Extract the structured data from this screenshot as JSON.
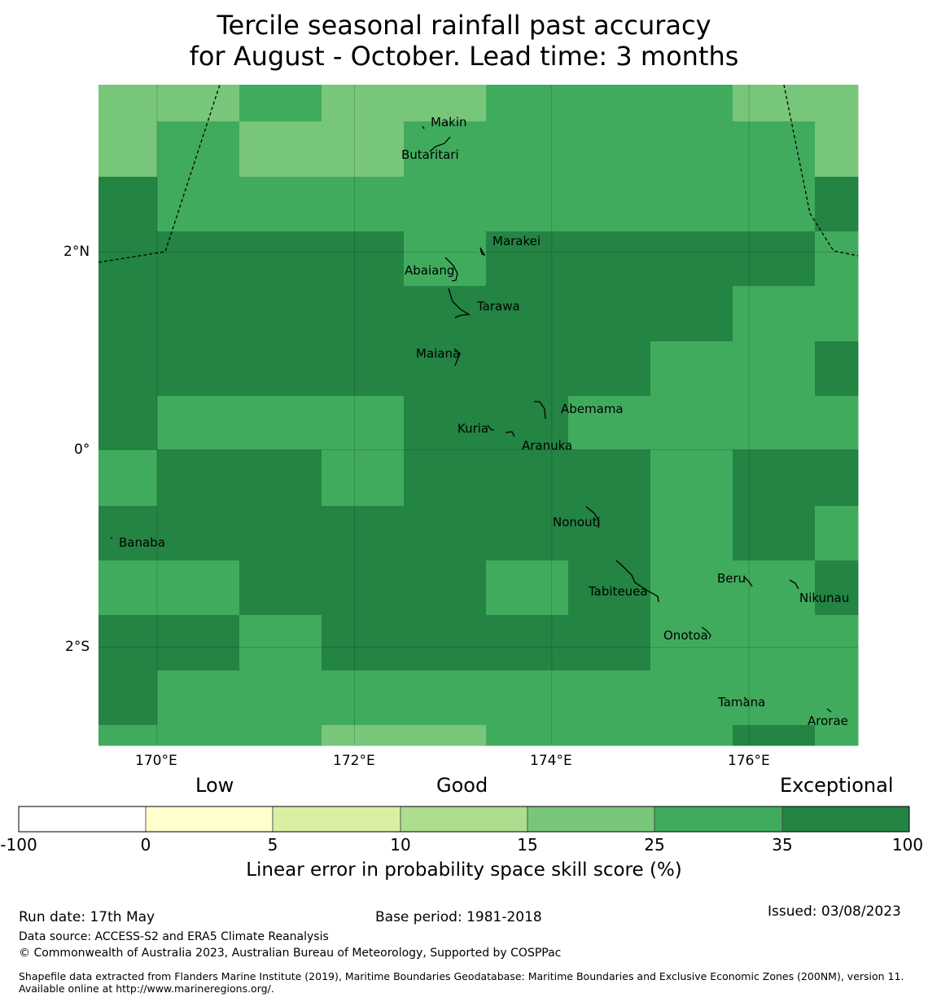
{
  "title_line1": "Tercile seasonal rainfall past accuracy",
  "title_line2": "for August - October. Lead time: 3 months",
  "map": {
    "lon_ticks": [
      "170°E",
      "172°E",
      "174°E",
      "176°E"
    ],
    "lat_ticks": [
      "2°N",
      "0°",
      "2°S"
    ],
    "lon_tick_values": [
      170,
      172,
      174,
      176
    ],
    "lat_tick_values": [
      2,
      0,
      -2
    ],
    "lon_range": [
      169.4,
      177.1
    ],
    "lat_range": [
      -3.0,
      3.7
    ],
    "skill_categories": [
      "-100 to 0",
      "0 to 5",
      "5 to 10",
      "10 to 15",
      "15 to 25",
      "25 to 35",
      "35 to 100"
    ],
    "grid_levels": [
      [
        4,
        4,
        5,
        4,
        4,
        5,
        5,
        5,
        4,
        4
      ],
      [
        4,
        5,
        4,
        4,
        5,
        5,
        5,
        5,
        5,
        4
      ],
      [
        6,
        5,
        5,
        5,
        5,
        5,
        5,
        5,
        5,
        6
      ],
      [
        6,
        6,
        6,
        6,
        5,
        6,
        6,
        6,
        6,
        5
      ],
      [
        6,
        6,
        6,
        6,
        6,
        6,
        6,
        6,
        5,
        5
      ],
      [
        6,
        6,
        6,
        6,
        6,
        6,
        6,
        6,
        5,
        6
      ],
      [
        6,
        6,
        6,
        6,
        6,
        6,
        6,
        5,
        5,
        6
      ],
      [
        6,
        6,
        6,
        6,
        6,
        5,
        5,
        5,
        6,
        6
      ],
      [
        6,
        5,
        5,
        5,
        6,
        6,
        5,
        5,
        5,
        5
      ],
      [
        5,
        6,
        6,
        5,
        6,
        6,
        6,
        5,
        6,
        6
      ],
      [
        6,
        6,
        6,
        6,
        6,
        6,
        6,
        5,
        6,
        5
      ],
      [
        6,
        6,
        6,
        6,
        6,
        6,
        6,
        5,
        6,
        5
      ],
      [
        5,
        5,
        6,
        6,
        6,
        5,
        6,
        5,
        5,
        6
      ],
      [
        6,
        6,
        5,
        6,
        6,
        6,
        6,
        5,
        5,
        5
      ],
      [
        6,
        5,
        5,
        5,
        5,
        5,
        5,
        5,
        5,
        5
      ],
      [
        6,
        5,
        5,
        5,
        5,
        5,
        5,
        5,
        5,
        5
      ],
      [
        5,
        5,
        5,
        4,
        4,
        5,
        5,
        5,
        6,
        5
      ]
    ],
    "places": [
      {
        "name": "Makin",
        "lon": 173.15,
        "lat": 3.3
      },
      {
        "name": "Butaritari",
        "lon": 172.85,
        "lat": 3.03
      },
      {
        "name": "Marakei",
        "lon": 173.75,
        "lat": 2.15
      },
      {
        "name": "Abaiang",
        "lon": 172.65,
        "lat": 1.85
      },
      {
        "name": "Tarawa",
        "lon": 173.55,
        "lat": 1.5
      },
      {
        "name": "Maiana",
        "lon": 172.85,
        "lat": 1.02
      },
      {
        "name": "Abemama",
        "lon": 174.4,
        "lat": 0.45
      },
      {
        "name": "Kuria",
        "lon": 172.95,
        "lat": 0.2
      },
      {
        "name": "Aranuka",
        "lon": 173.95,
        "lat": 0.05
      },
      {
        "name": "Nonouti",
        "lon": 174.25,
        "lat": -0.7
      },
      {
        "name": "Banaba",
        "lon": 169.85,
        "lat": -0.95
      },
      {
        "name": "Beru",
        "lon": 175.9,
        "lat": -1.3
      },
      {
        "name": "Tabiteuea",
        "lon": 174.7,
        "lat": -1.43
      },
      {
        "name": "Nikunau",
        "lon": 176.85,
        "lat": -1.5
      },
      {
        "name": "Onotoa",
        "lon": 175.4,
        "lat": -1.9
      },
      {
        "name": "Tamana",
        "lon": 175.95,
        "lat": -2.6
      },
      {
        "name": "Arorae",
        "lon": 176.8,
        "lat": -2.78
      }
    ]
  },
  "colorbar": {
    "category_labels": [
      "Low",
      "Good",
      "Exceptional"
    ],
    "ticks": [
      "-100",
      "0",
      "5",
      "10",
      "15",
      "25",
      "35",
      "100"
    ],
    "colors": [
      "#ffffff",
      "#ffffcc",
      "#d9f0a3",
      "#addd8e",
      "#78c679",
      "#41ab5d",
      "#238443"
    ],
    "units_label": "Linear error in probability space skill score (%)"
  },
  "footer": {
    "run_date": "Run date: 17th May",
    "base_period": "Base period: 1981-2018",
    "issued": "Issued: 03/08/2023",
    "data_source": "Data source: ACCESS-S2 and ERA5 Climate Reanalysis",
    "copyright": "© Commonwealth of Australia 2023, Australian Bureau of Meteorology, Supported by COSPPac",
    "shapefile": "Shapefile data extracted from Flanders Marine Institute (2019), Maritime Boundaries Geodatabase: Maritime Boundaries and Exclusive Economic Zones (200NM), version 11. Available online at http://www.marineregions.org/."
  }
}
